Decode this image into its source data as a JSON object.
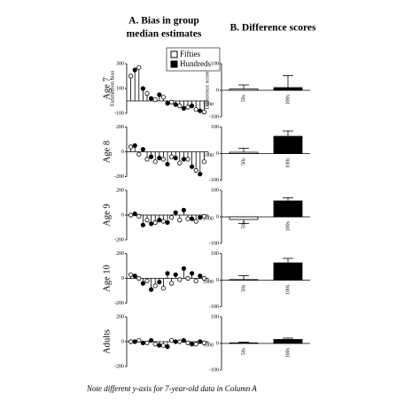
{
  "column_titles": [
    "A. Bias in group",
    "median estimates",
    "B. Difference scores"
  ],
  "footnote": "Note different y-axis for 7-year-old data in Column A",
  "chart_data": [
    {
      "type": "dot",
      "label": "Age 7",
      "ylabel": "Estimation bias",
      "xlim": [
        0,
        1000
      ],
      "xticks": [
        1000
      ],
      "ylim": [
        -100,
        300
      ],
      "yticks": [
        -100,
        100,
        300
      ],
      "series": [
        {
          "name": "Fifties",
          "color": "#ffffff",
          "x": [
            50,
            150,
            250,
            350,
            450,
            550,
            650,
            750,
            850,
            950
          ],
          "values": [
            200,
            270,
            60,
            10,
            30,
            -10,
            -40,
            -50,
            -70,
            -90
          ]
        },
        {
          "name": "Hundreds",
          "color": "#000000",
          "x": [
            100,
            200,
            300,
            400,
            500,
            600,
            700,
            800,
            900
          ],
          "values": [
            250,
            100,
            20,
            50,
            -20,
            -30,
            -60,
            -40,
            -80
          ]
        }
      ]
    },
    {
      "type": "dot",
      "label": "Age 8",
      "xlim": [
        0,
        1000
      ],
      "xticks": [
        1000
      ],
      "ylim": [
        -200,
        200
      ],
      "yticks": [
        -200,
        0,
        200
      ],
      "series": [
        {
          "name": "Fifties",
          "color": "#ffffff",
          "x": [
            50,
            150,
            250,
            350,
            450,
            550,
            650,
            750,
            850,
            950
          ],
          "values": [
            40,
            -20,
            -60,
            -80,
            -60,
            -40,
            -90,
            -60,
            -150,
            -80
          ]
        },
        {
          "name": "Hundreds",
          "color": "#000000",
          "x": [
            100,
            200,
            300,
            400,
            500,
            600,
            700,
            800,
            900
          ],
          "values": [
            50,
            20,
            -40,
            -50,
            -100,
            -50,
            -60,
            -120,
            -180
          ]
        }
      ]
    },
    {
      "type": "dot",
      "label": "Age 9",
      "xlim": [
        0,
        1000
      ],
      "xticks": [
        1000
      ],
      "ylim": [
        -200,
        200
      ],
      "yticks": [
        -200,
        0,
        200
      ],
      "series": [
        {
          "name": "Fifties",
          "color": "#ffffff",
          "x": [
            50,
            150,
            250,
            350,
            450,
            550,
            650,
            750,
            850,
            950
          ],
          "values": [
            0,
            -10,
            -40,
            -60,
            -50,
            -20,
            -40,
            -30,
            -50,
            -10
          ]
        },
        {
          "name": "Hundreds",
          "color": "#000000",
          "x": [
            100,
            200,
            300,
            400,
            500,
            600,
            700,
            800,
            900
          ],
          "values": [
            10,
            -80,
            -70,
            -40,
            -60,
            20,
            40,
            -30,
            -20
          ]
        }
      ]
    },
    {
      "type": "dot",
      "label": "Age 10",
      "xlim": [
        0,
        1000
      ],
      "xticks": [
        1000
      ],
      "ylim": [
        -200,
        200
      ],
      "yticks": [
        -200,
        0,
        200
      ],
      "series": [
        {
          "name": "Fifties",
          "color": "#ffffff",
          "x": [
            50,
            150,
            250,
            350,
            450,
            550,
            650,
            750,
            850,
            950
          ],
          "values": [
            30,
            0,
            -20,
            -60,
            -80,
            -40,
            -10,
            0,
            -20,
            0
          ]
        },
        {
          "name": "Hundreds",
          "color": "#000000",
          "x": [
            100,
            200,
            300,
            400,
            500,
            600,
            700,
            800,
            900
          ],
          "values": [
            20,
            -40,
            -90,
            -30,
            40,
            30,
            80,
            40,
            20
          ]
        }
      ]
    },
    {
      "type": "dot",
      "label": "Adults",
      "xlim": [
        0,
        1000
      ],
      "xticks": [
        1000
      ],
      "ylim": [
        -200,
        200
      ],
      "yticks": [
        -200,
        0,
        200
      ],
      "series": [
        {
          "name": "Fifties",
          "color": "#ffffff",
          "x": [
            50,
            150,
            250,
            350,
            450,
            550,
            650,
            750,
            850,
            950
          ],
          "values": [
            0,
            10,
            -10,
            -20,
            -30,
            10,
            0,
            -10,
            -20,
            -10
          ]
        },
        {
          "name": "Hundreds",
          "color": "#000000",
          "x": [
            100,
            200,
            300,
            400,
            500,
            600,
            700,
            800,
            900
          ],
          "values": [
            0,
            -10,
            10,
            -30,
            -40,
            0,
            10,
            -20,
            0
          ]
        }
      ]
    },
    {
      "type": "bar",
      "ylabel": "Difference score",
      "categories": [
        "50s",
        "100s"
      ],
      "values": [
        5,
        10
      ],
      "errors": [
        15,
        45
      ],
      "colors": [
        "#ffffff",
        "#000000"
      ],
      "ylim": [
        -100,
        100
      ],
      "yticks": [
        -100,
        0,
        100
      ]
    },
    {
      "type": "bar",
      "categories": [
        "50s",
        "100s"
      ],
      "values": [
        5,
        65
      ],
      "errors": [
        15,
        20
      ],
      "colors": [
        "#ffffff",
        "#000000"
      ],
      "ylim": [
        -100,
        100
      ],
      "yticks": [
        -100,
        0,
        100
      ]
    },
    {
      "type": "bar",
      "categories": [
        "50s",
        "100s"
      ],
      "values": [
        -10,
        60
      ],
      "errors": [
        15,
        12
      ],
      "colors": [
        "#ffffff",
        "#000000"
      ],
      "ylim": [
        -100,
        100
      ],
      "yticks": [
        -100,
        0,
        100
      ]
    },
    {
      "type": "bar",
      "categories": [
        "50s",
        "100s"
      ],
      "values": [
        2,
        65
      ],
      "errors": [
        15,
        17
      ],
      "colors": [
        "#ffffff",
        "#000000"
      ],
      "ylim": [
        -100,
        100
      ],
      "yticks": [
        -100,
        0,
        100
      ]
    },
    {
      "type": "bar",
      "categories": [
        "50s",
        "100s"
      ],
      "values": [
        2,
        15
      ],
      "errors": [
        3,
        5
      ],
      "colors": [
        "#ffffff",
        "#000000"
      ],
      "ylim": [
        -100,
        100
      ],
      "yticks": [
        -100,
        0,
        100
      ]
    }
  ]
}
